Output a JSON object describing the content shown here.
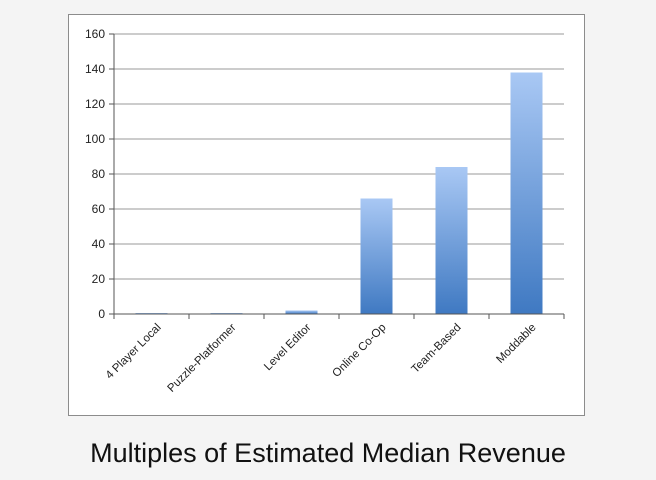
{
  "caption": "Multiples of Estimated Median Revenue",
  "chart_data": {
    "type": "bar",
    "title": "",
    "xlabel": "",
    "ylabel": "",
    "categories": [
      "4 Player Local",
      "Puzzle-Platformer",
      "Level Editor",
      "Online Co-Op",
      "Team-Based",
      "Moddable"
    ],
    "values": [
      0.3,
      0.5,
      2,
      66,
      84,
      138
    ],
    "ylim": [
      0,
      160
    ],
    "yticks": [
      0,
      20,
      40,
      60,
      80,
      100,
      120,
      140,
      160
    ],
    "grid": true,
    "legend": "none",
    "colors": {
      "bar_top": "#a9c8f4",
      "bar_bottom": "#3f79c2",
      "grid": "#9a9a9a",
      "axis": "#555555"
    }
  }
}
